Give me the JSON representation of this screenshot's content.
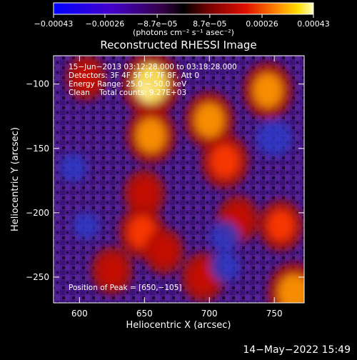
{
  "chart_data": {
    "type": "heatmap",
    "title": "Reconstructed RHESSI Image",
    "xlabel": "Heliocentric X (arcsec)",
    "ylabel": "Heliocentric Y (arcsec)",
    "xlim": [
      580,
      773
    ],
    "ylim": [
      -270,
      -78
    ],
    "x_ticks": [
      {
        "value": 600,
        "label": "600"
      },
      {
        "value": 650,
        "label": "650"
      },
      {
        "value": 700,
        "label": "700"
      },
      {
        "value": 750,
        "label": "750"
      }
    ],
    "y_ticks": [
      {
        "value": -100,
        "label": "−100"
      },
      {
        "value": -150,
        "label": "−150"
      },
      {
        "value": -200,
        "label": "−200"
      },
      {
        "value": -250,
        "label": "−250"
      }
    ],
    "colorbar": {
      "range": [
        -0.00043,
        0.00043
      ],
      "units_label": "(photons cm⁻² s⁻¹ asec⁻²)",
      "ticks": [
        {
          "value": -0.00043,
          "label": "−0.00043"
        },
        {
          "value": -0.00026,
          "label": "−0.00026"
        },
        {
          "value": -8.7e-05,
          "label": "−8.7e−05"
        },
        {
          "value": 8.7e-05,
          "label": "8.7e−05"
        },
        {
          "value": 0.00026,
          "label": "0.00026"
        },
        {
          "value": 0.00043,
          "label": "0.00043"
        }
      ]
    },
    "annotations": [
      "15−Jun−2013 03:12:28.000 to 03:18:28.000",
      "Detectors: 3F 4F 5F 6F 7F 8F, Att 0",
      "Energy Range: 25.0 − 50.0 keV",
      "Clean    Total counts: 9.27E+03"
    ],
    "peak_label": "Position of Peak = [650,−105]",
    "peak": {
      "x": 650,
      "y": -105
    },
    "bright_regions": [
      {
        "x": 655,
        "y": -100,
        "intensity": 1.0
      },
      {
        "x": 655,
        "y": -140,
        "intensity": 0.75
      },
      {
        "x": 700,
        "y": -128,
        "intensity": 0.75
      },
      {
        "x": 712,
        "y": -160,
        "intensity": 0.7
      },
      {
        "x": 745,
        "y": -105,
        "intensity": 0.75
      },
      {
        "x": 650,
        "y": -185,
        "intensity": 0.5
      },
      {
        "x": 648,
        "y": -215,
        "intensity": 0.65
      },
      {
        "x": 605,
        "y": -95,
        "intensity": 0.45
      },
      {
        "x": 755,
        "y": -210,
        "intensity": 0.6
      },
      {
        "x": 695,
        "y": -250,
        "intensity": 0.55
      },
      {
        "x": 765,
        "y": -262,
        "intensity": 0.85
      },
      {
        "x": 625,
        "y": -245,
        "intensity": 0.5
      },
      {
        "x": 665,
        "y": -230,
        "intensity": 0.45
      },
      {
        "x": 722,
        "y": -205,
        "intensity": 0.5
      }
    ],
    "dark_regions": [
      {
        "x": 750,
        "y": -142,
        "intensity": 0.8
      },
      {
        "x": 712,
        "y": -218,
        "intensity": 0.5
      },
      {
        "x": 595,
        "y": -165,
        "intensity": 0.4
      },
      {
        "x": 605,
        "y": -210,
        "intensity": 0.35
      },
      {
        "x": 712,
        "y": -242,
        "intensity": 0.5
      }
    ]
  },
  "footer": {
    "timestamp": "14−May−2022 15:49"
  }
}
